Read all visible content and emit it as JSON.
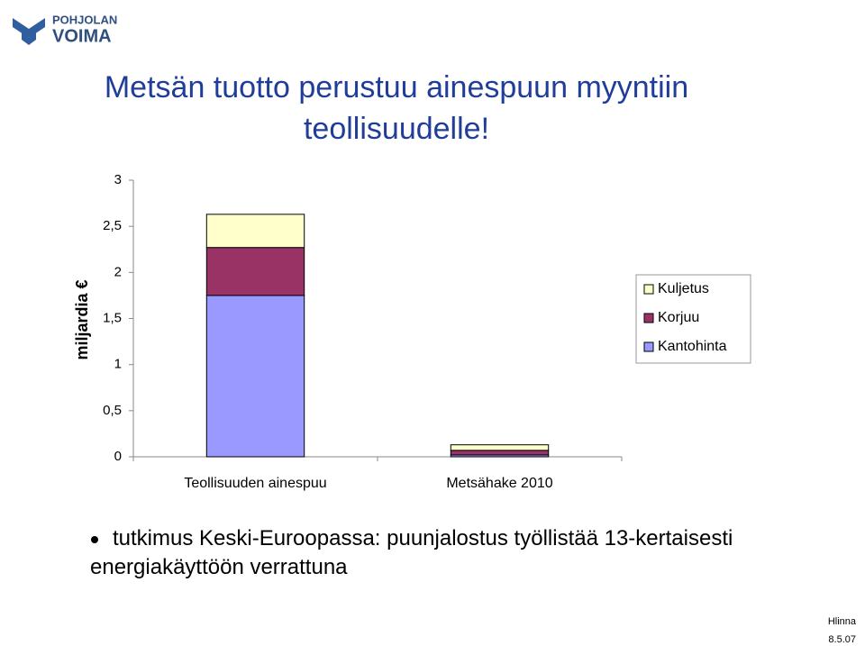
{
  "logo": {
    "line1": "POHJOLAN",
    "line2": "VOIMA"
  },
  "slide_title": "Metsän tuotto perustuu ainespuun myyntiin teollisuudelle!",
  "chart_data": {
    "type": "bar",
    "stacked": true,
    "ylabel": "miljardia €",
    "categories": [
      "Teollisuuden ainespuu",
      "Metsähake 2010"
    ],
    "series": [
      {
        "name": "Kantohinta",
        "color": "#9999ff",
        "values": [
          1.75,
          0.02
        ]
      },
      {
        "name": "Korjuu",
        "color": "#993366",
        "values": [
          0.52,
          0.05
        ]
      },
      {
        "name": "Kuljetus",
        "color": "#ffffcc",
        "values": [
          0.36,
          0.06
        ]
      }
    ],
    "ylim": [
      0,
      3
    ],
    "yticks": [
      0,
      {
        "value": 0.5,
        "label": "0,5"
      },
      1,
      {
        "value": 1.5,
        "label": "1,5"
      },
      2,
      {
        "value": 2.5,
        "label": "2,5"
      },
      3
    ],
    "legend": "right"
  },
  "bullet": "tutkimus Keski-Euroopassa: puunjalostus työllistää 13-kertaisesti energiakäyttöön verrattuna",
  "footer": {
    "author": "Hlinna",
    "date": "8.5.07"
  }
}
